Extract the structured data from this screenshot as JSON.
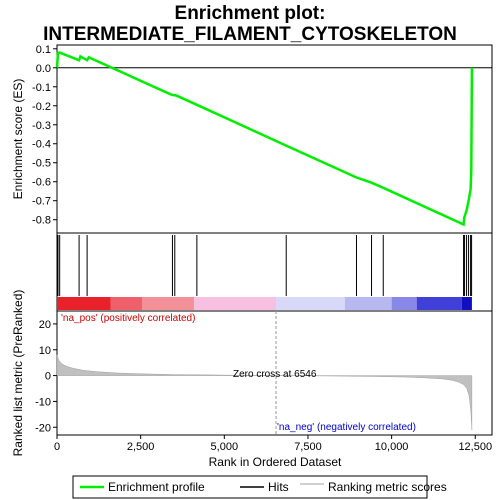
{
  "chart_data": {
    "type": "line",
    "title_line1": "Enrichment plot:",
    "title_line2": "INTERMEDIATE_FILAMENT_CYTOSKELETON",
    "top_panel": {
      "ylabel": "Enrichment score (ES)",
      "ylim": [
        -0.87,
        0.12
      ],
      "yticks": [
        "0.1",
        "0.0",
        "-0.1",
        "-0.2",
        "-0.3",
        "-0.4",
        "-0.5",
        "-0.6",
        "-0.7",
        "-0.8"
      ],
      "ytick_values": [
        0.1,
        0.0,
        -0.1,
        -0.2,
        -0.3,
        -0.4,
        -0.5,
        -0.6,
        -0.7,
        -0.8
      ],
      "series": [
        {
          "name": "Enrichment profile",
          "color": "#00ee00",
          "x": [
            0,
            30,
            80,
            660,
            700,
            900,
            950,
            3400,
            3500,
            3550,
            4180,
            6850,
            8950,
            9400,
            9750,
            12150,
            12170,
            12240,
            12300,
            12360,
            12380,
            12390,
            12395,
            12400
          ],
          "y": [
            0.0,
            0.08,
            0.08,
            0.04,
            0.06,
            0.04,
            0.055,
            -0.14,
            -0.145,
            -0.145,
            -0.195,
            -0.41,
            -0.578,
            -0.605,
            -0.632,
            -0.825,
            -0.79,
            -0.75,
            -0.7,
            -0.64,
            -0.54,
            -0.28,
            -0.1,
            0.0
          ]
        }
      ],
      "zero_line": 0.0
    },
    "hits": [
      30,
      80,
      660,
      900,
      3450,
      3520,
      4180,
      6850,
      8950,
      9400,
      9750,
      12150,
      12180,
      12240,
      12300,
      12360,
      12390
    ],
    "color_bar": {
      "segments": [
        {
          "start": 0,
          "end": 1600,
          "color": "#e8212b"
        },
        {
          "start": 1600,
          "end": 2550,
          "color": "#f0606a"
        },
        {
          "start": 2550,
          "end": 4100,
          "color": "#f49098"
        },
        {
          "start": 4100,
          "end": 6546,
          "color": "#f8c0e0"
        },
        {
          "start": 6546,
          "end": 8600,
          "color": "#d8d8f8"
        },
        {
          "start": 8600,
          "end": 10000,
          "color": "#b8b8f0"
        },
        {
          "start": 10000,
          "end": 10750,
          "color": "#8888e8"
        },
        {
          "start": 10750,
          "end": 12100,
          "color": "#4040d8"
        },
        {
          "start": 12100,
          "end": 12400,
          "color": "#1010c0"
        }
      ]
    },
    "bottom_panel": {
      "ylabel": "Ranked list metric (PreRanked)",
      "xlabel": "Rank in Ordered Dataset",
      "ylim": [
        -23,
        25
      ],
      "yticks": [
        "20",
        "10",
        "0",
        "-10",
        "-20"
      ],
      "ytick_values": [
        20,
        10,
        0,
        -10,
        -20
      ],
      "xlim": [
        0,
        13000
      ],
      "xticks": [
        "0",
        "2,500",
        "5,000",
        "7,500",
        "10,000",
        "12,500"
      ],
      "xtick_values": [
        0,
        2500,
        5000,
        7500,
        10000,
        12500
      ],
      "metric_x": [
        0,
        50,
        150,
        300,
        500,
        800,
        1200,
        1800,
        2500,
        3500,
        4500,
        5500,
        6546,
        7500,
        8500,
        9500,
        10500,
        11000,
        11500,
        11800,
        12000,
        12150,
        12250,
        12320,
        12370,
        12400
      ],
      "metric_y": [
        8.0,
        6.0,
        4.5,
        3.5,
        2.8,
        2.0,
        1.5,
        1.0,
        0.7,
        0.4,
        0.25,
        0.1,
        0.0,
        -0.1,
        -0.2,
        -0.35,
        -0.6,
        -0.9,
        -1.3,
        -1.8,
        -2.5,
        -3.5,
        -5.0,
        -8.0,
        -14.0,
        -21.0
      ],
      "zero_cross_label": "Zero cross at 6546",
      "zero_cross": 6546,
      "pos_label": "'na_pos' (positively correlated)",
      "neg_label": "'na_neg' (negatively correlated)",
      "pos_color": "#cc0000",
      "neg_color": "#0000cc"
    },
    "legend": [
      {
        "label": "Enrichment profile",
        "color": "#00ee00"
      },
      {
        "label": "Hits",
        "color": "#000000"
      },
      {
        "label": "Ranking metric scores",
        "color": "#c0c0c0"
      }
    ],
    "total_ranks": 12400
  }
}
